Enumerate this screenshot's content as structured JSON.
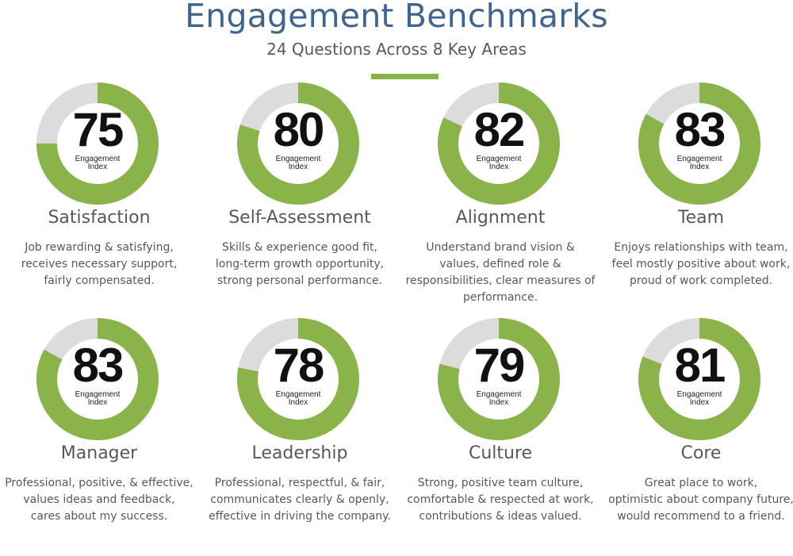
{
  "header": {
    "title": "Engagement Benchmarks",
    "subtitle": "24 Questions Across 8 Key Areas"
  },
  "colors": {
    "title": "#3e6590",
    "accent_green": "#8ab349",
    "ring_gray": "#dcdcdc",
    "text_gray": "#55595c"
  },
  "index_label_line1": "Engagement",
  "index_label_line2": "Index",
  "chart_data": {
    "type": "donut",
    "title": "Engagement Benchmarks",
    "subtitle": "24 Questions Across 8 Key Areas",
    "value_range": [
      0,
      100
    ],
    "items": [
      {
        "area": "Satisfaction",
        "value": 75,
        "description": [
          "Job rewarding & satisfying,",
          "receives necessary support,",
          "fairly compensated."
        ]
      },
      {
        "area": "Self-Assessment",
        "value": 80,
        "description": [
          "Skills & experience good fit,",
          "long-term growth opportunity,",
          "strong personal performance."
        ]
      },
      {
        "area": "Alignment",
        "value": 82,
        "description": [
          "Understand brand vision &",
          "values, defined role &",
          "responsibilities, clear measures of",
          "performance."
        ]
      },
      {
        "area": "Team",
        "value": 83,
        "description": [
          "Enjoys relationships with team,",
          "feel mostly positive about work,",
          "proud of work completed."
        ]
      },
      {
        "area": "Manager",
        "value": 83,
        "description": [
          "Professional, positive, & effective,",
          "values ideas and feedback,",
          "cares about my success."
        ]
      },
      {
        "area": "Leadership",
        "value": 78,
        "description": [
          "Professional, respectful, & fair,",
          "communicates clearly & openly,",
          "effective in driving the company."
        ]
      },
      {
        "area": "Culture",
        "value": 79,
        "description": [
          "Strong, positive team culture,",
          "comfortable & respected at work,",
          "contributions & ideas valued."
        ]
      },
      {
        "area": "Core",
        "value": 81,
        "description": [
          "Great place to work,",
          "optimistic about company future,",
          "would recommend to a friend."
        ]
      }
    ]
  }
}
